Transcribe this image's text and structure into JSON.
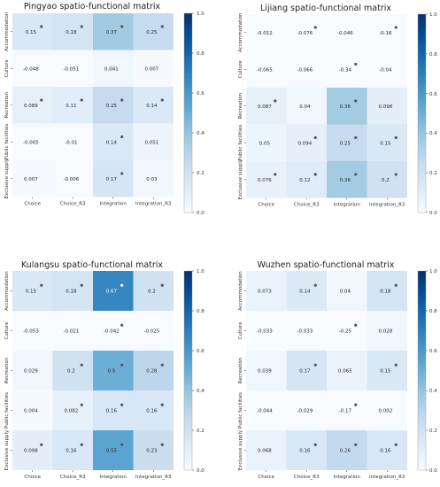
{
  "chart_data": [
    {
      "type": "heatmap",
      "title": "Pingyao spatio-functional matrix",
      "x_categories": [
        "Choice",
        "Choice_R3",
        "Integration",
        "Integration_R3"
      ],
      "y_categories": [
        "Accommodation",
        "Culture",
        "Recreation",
        "Public facilities",
        "Exclusive supply"
      ],
      "values": [
        [
          0.15,
          0.18,
          0.37,
          0.25
        ],
        [
          -0.048,
          -0.051,
          0.041,
          0.007
        ],
        [
          0.089,
          0.11,
          0.25,
          0.14
        ],
        [
          -0.005,
          -0.01,
          0.14,
          0.051
        ],
        [
          0.007,
          -0.006,
          0.17,
          0.03
        ]
      ],
      "labels": [
        [
          "0.15",
          "0.18",
          "0.37",
          "0.25"
        ],
        [
          "-0.048",
          "-0.051",
          "0.041",
          "0.007"
        ],
        [
          "0.089",
          "0.11",
          "0.25",
          "0.14"
        ],
        [
          "-0.005",
          "-0.01",
          "0.14",
          "0.051"
        ],
        [
          "0.007",
          "-0.006",
          "0.17",
          "0.03"
        ]
      ],
      "significant": [
        [
          true,
          true,
          true,
          true
        ],
        [
          false,
          false,
          false,
          false
        ],
        [
          true,
          true,
          true,
          true
        ],
        [
          false,
          false,
          true,
          false
        ],
        [
          false,
          false,
          true,
          false
        ]
      ],
      "colorbar": {
        "range": [
          0.0,
          1.0
        ],
        "ticks": [
          "0.0",
          "0.2",
          "0.4",
          "0.6",
          "0.8",
          "1.0"
        ]
      }
    },
    {
      "type": "heatmap",
      "title": "Lijiang spatio-functional matrix",
      "x_categories": [
        "Choice",
        "Choice_R3",
        "Integration",
        "Integration_R3"
      ],
      "y_categories": [
        "Accommodation",
        "Culture",
        "Recreation",
        "Public facilities",
        "Exclusive supply"
      ],
      "values": [
        [
          -0.012,
          -0.076,
          -0.046,
          -0.16
        ],
        [
          -0.065,
          -0.066,
          -0.34,
          -0.04
        ],
        [
          0.087,
          0.04,
          0.36,
          0.098
        ],
        [
          0.05,
          0.094,
          0.25,
          0.15
        ],
        [
          0.076,
          0.12,
          0.36,
          0.2
        ]
      ],
      "labels": [
        [
          "-0.012",
          "-0.076",
          "-0.046",
          "-0.16"
        ],
        [
          "-0.065",
          "-0.066",
          "-0.34",
          "-0.04"
        ],
        [
          "0.087",
          "0.04",
          "0.36",
          "0.098"
        ],
        [
          "0.05",
          "0.094",
          "0.25",
          "0.15"
        ],
        [
          "0.076",
          "0.12",
          "0.36",
          "0.2"
        ]
      ],
      "significant": [
        [
          false,
          true,
          false,
          true
        ],
        [
          false,
          false,
          true,
          false
        ],
        [
          true,
          false,
          true,
          false
        ],
        [
          false,
          true,
          true,
          true
        ],
        [
          true,
          true,
          true,
          true
        ]
      ],
      "colorbar": {
        "range": [
          0.0,
          1.0
        ],
        "ticks": [
          "0.0",
          "0.2",
          "0.4",
          "0.6",
          "0.8",
          "1.0"
        ]
      }
    },
    {
      "type": "heatmap",
      "title": "Kulangsu spatio-functional matrix",
      "x_categories": [
        "Choice",
        "Choice_R3",
        "Integration",
        "Integration_R3"
      ],
      "y_categories": [
        "Accommodation",
        "Culture",
        "Recreation",
        "Public facilities",
        "Exclusive supply"
      ],
      "values": [
        [
          0.15,
          0.18,
          0.67,
          0.2
        ],
        [
          -0.053,
          -0.021,
          -0.042,
          -0.025
        ],
        [
          0.029,
          0.2,
          0.5,
          0.28
        ],
        [
          0.004,
          0.082,
          0.16,
          0.16
        ],
        [
          0.098,
          0.16,
          0.55,
          0.23
        ]
      ],
      "labels": [
        [
          "0.15",
          "0.18",
          "0.67",
          "0.2"
        ],
        [
          "-0.053",
          "-0.021",
          "-0.042",
          "-0.025"
        ],
        [
          "0.029",
          "0.2",
          "0.5",
          "0.28"
        ],
        [
          "0.004",
          "0.082",
          "0.16",
          "0.16"
        ],
        [
          "0.098",
          "0.16",
          "0.55",
          "0.23"
        ]
      ],
      "significant": [
        [
          true,
          true,
          true,
          true
        ],
        [
          false,
          false,
          true,
          false
        ],
        [
          false,
          true,
          true,
          true
        ],
        [
          false,
          true,
          true,
          true
        ],
        [
          true,
          true,
          true,
          true
        ]
      ],
      "colorbar": {
        "range": [
          0.0,
          1.0
        ],
        "ticks": [
          "0.0",
          "0.2",
          "0.4",
          "0.6",
          "0.8",
          "1.0"
        ]
      }
    },
    {
      "type": "heatmap",
      "title": "Wuzhen spatio-functional matrix",
      "x_categories": [
        "Choice",
        "Choice_R3",
        "Integration",
        "Integration_R3"
      ],
      "y_categories": [
        "Accommodation",
        "Culture",
        "Recreation",
        "Public facilities",
        "Exclusive supply"
      ],
      "values": [
        [
          0.073,
          0.14,
          0.04,
          0.18
        ],
        [
          -0.033,
          -0.033,
          -0.25,
          0.028
        ],
        [
          0.039,
          0.17,
          0.065,
          0.15
        ],
        [
          -0.044,
          -0.029,
          -0.17,
          0.002
        ],
        [
          0.068,
          0.16,
          0.26,
          0.16
        ]
      ],
      "labels": [
        [
          "0.073",
          "0.14",
          "0.04",
          "0.18"
        ],
        [
          "-0.033",
          "-0.033",
          "-0.25",
          "0.028"
        ],
        [
          "0.039",
          "0.17",
          "0.065",
          "0.15"
        ],
        [
          "-0.044",
          "-0.029",
          "-0.17",
          "0.002"
        ],
        [
          "0.068",
          "0.16",
          "0.26",
          "0.16"
        ]
      ],
      "significant": [
        [
          false,
          true,
          false,
          true
        ],
        [
          false,
          false,
          true,
          false
        ],
        [
          false,
          true,
          false,
          true
        ],
        [
          false,
          false,
          true,
          false
        ],
        [
          false,
          true,
          true,
          true
        ]
      ],
      "colorbar": {
        "range": [
          0.0,
          1.0
        ],
        "ticks": [
          "0.0",
          "0.2",
          "0.4",
          "0.6",
          "0.8",
          "1.0"
        ]
      }
    }
  ]
}
